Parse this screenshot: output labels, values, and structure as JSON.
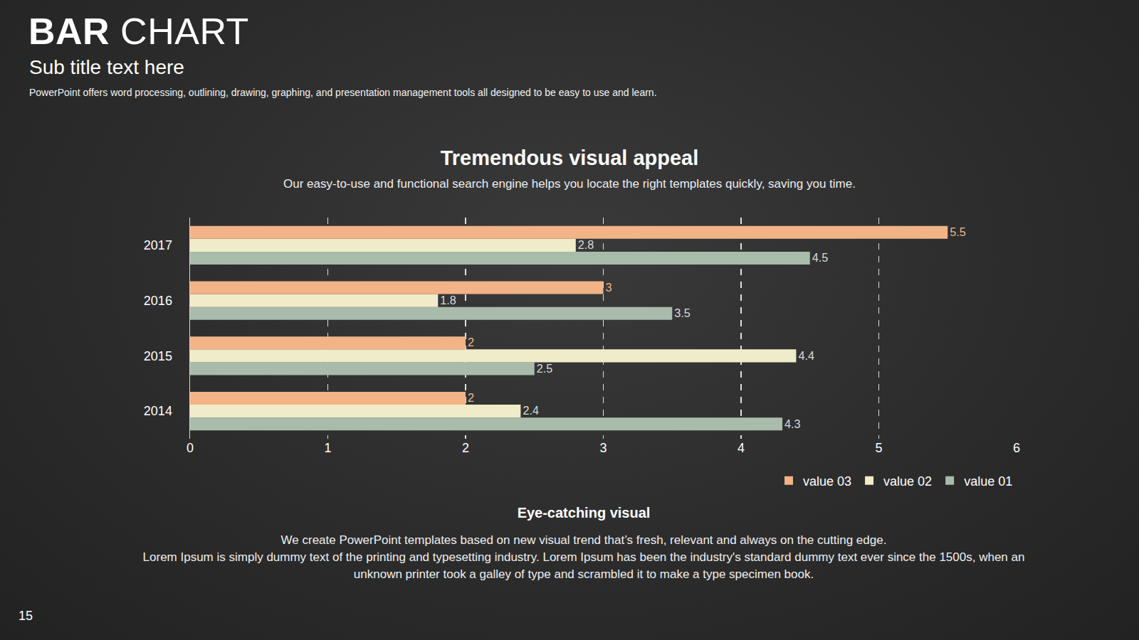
{
  "header": {
    "title": "BAR CHART",
    "subtitle": "Sub title text here",
    "description": "PowerPoint offers word processing, outlining, drawing, graphing, and presentation management tools all designed to be easy to use and learn."
  },
  "chart_data": {
    "type": "bar",
    "orientation": "horizontal",
    "title": "Tremendous visual appeal",
    "subtitle": "Our easy-to-use and functional search engine helps you locate the right templates quickly, saving you time.",
    "categories": [
      "2014",
      "2015",
      "2016",
      "2017"
    ],
    "series": [
      {
        "name": "value 01",
        "color": "#a9bbaa",
        "values": [
          4.3,
          2.5,
          3.5,
          4.5
        ]
      },
      {
        "name": "value 02",
        "color": "#f0ebc9",
        "values": [
          2.4,
          4.4,
          1.8,
          2.8
        ]
      },
      {
        "name": "value 03",
        "color": "#f2b387",
        "values": [
          2,
          2,
          3,
          5.5
        ]
      }
    ],
    "xlim": [
      0,
      6
    ],
    "xticks": [
      0,
      1,
      2,
      3,
      4,
      5,
      6
    ],
    "grid": true,
    "data_labels": true,
    "legend": "bottom right"
  },
  "footer": {
    "heading": "Eye-catching visual",
    "paragraphs": [
      "We create PowerPoint templates based on new visual trend that’s fresh, relevant and always on the cutting edge.",
      "Lorem Ipsum is simply dummy text of the printing and typesetting industry. Lorem Ipsum has been the industry's standard dummy text ever since the 1500s, when an unknown printer took a galley of type and scrambled it to make a type specimen book."
    ]
  },
  "page_number": "15"
}
